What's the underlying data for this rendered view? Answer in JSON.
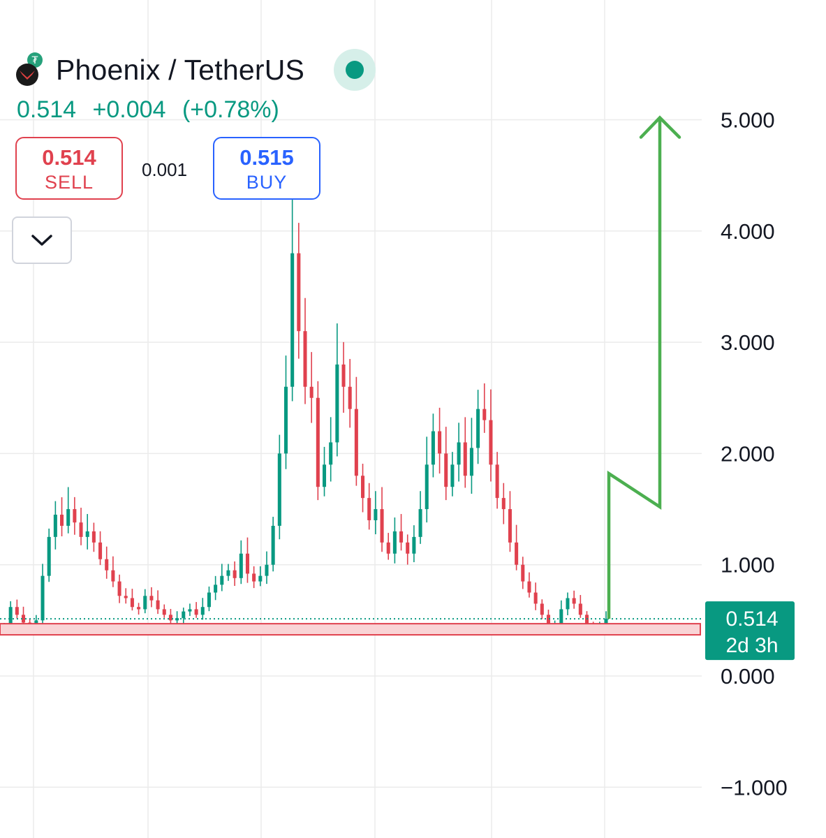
{
  "header": {
    "symbol_title": "Phoenix / TetherUS",
    "last_price": "0.514",
    "change": "+0.004",
    "change_pct": "(+0.78%)",
    "status_color": "#089981"
  },
  "trade": {
    "sell_price": "0.514",
    "sell_label": "SELL",
    "spread": "0.001",
    "buy_price": "0.515",
    "buy_label": "BUY"
  },
  "controls": {
    "collapse_icon": "chevron-down-icon"
  },
  "colors": {
    "up": "#089981",
    "down": "#e0414e",
    "projection": "#4caf50",
    "zone_fill": "#f9d4d6",
    "zone_stroke": "#e0414e",
    "grid": "#ebebeb"
  },
  "chart_data": {
    "type": "candlestick",
    "title": "",
    "xlabel": "",
    "ylabel": "",
    "ylim": [
      -1.45,
      6.0
    ],
    "yticks": [
      -1,
      0,
      1,
      2,
      3,
      4,
      5
    ],
    "ytick_labels": [
      "−1.000",
      "0.000",
      "1.000",
      "2.000",
      "3.000",
      "4.000",
      "5.000"
    ],
    "grid": true,
    "close_series": [
      0.45,
      0.62,
      0.55,
      0.48,
      0.42,
      0.5,
      0.9,
      1.25,
      1.45,
      1.35,
      1.5,
      1.38,
      1.25,
      1.3,
      1.2,
      1.05,
      0.95,
      0.85,
      0.72,
      0.7,
      0.62,
      0.6,
      0.72,
      0.68,
      0.6,
      0.55,
      0.5,
      0.52,
      0.58,
      0.6,
      0.55,
      0.62,
      0.75,
      0.82,
      0.9,
      0.95,
      0.88,
      1.1,
      0.92,
      0.85,
      0.9,
      1.0,
      1.35,
      2.0,
      2.6,
      3.8,
      3.1,
      2.6,
      2.5,
      1.7,
      1.9,
      2.1,
      2.8,
      2.6,
      2.4,
      1.8,
      1.6,
      1.4,
      1.5,
      1.2,
      1.1,
      1.3,
      1.2,
      1.1,
      1.25,
      1.5,
      1.9,
      2.2,
      2.0,
      1.7,
      1.9,
      2.1,
      1.8,
      2.05,
      2.4,
      2.3,
      1.9,
      1.6,
      1.5,
      1.2,
      1.0,
      0.85,
      0.75,
      0.65,
      0.55,
      0.42,
      0.45,
      0.6,
      0.7,
      0.65,
      0.55,
      0.45,
      0.4,
      0.44,
      0.514
    ],
    "current_price": 0.514,
    "price_label": "0.514",
    "countdown": "2d 3h",
    "support_zone": [
      0.37,
      0.47
    ],
    "projection_path": [
      {
        "y": 0.514
      },
      {
        "y": 1.82
      },
      {
        "y": 1.52
      },
      {
        "y": 5.0
      }
    ]
  }
}
